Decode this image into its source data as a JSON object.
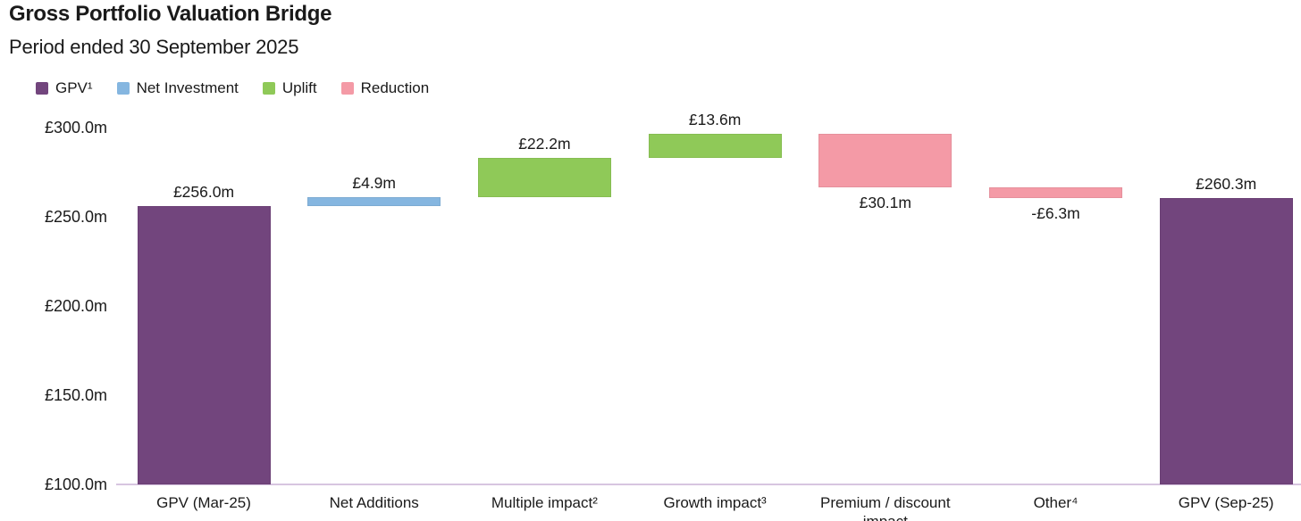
{
  "header": {
    "title": "Gross Portfolio Valuation Bridge",
    "subtitle": "Period ended 30 September 2025"
  },
  "chart_data": {
    "type": "waterfall",
    "title": "Gross Portfolio Valuation Bridge",
    "subtitle": "Period ended 30 September 2025",
    "currency_symbol": "£",
    "unit_suffix": "m",
    "ylim": [
      100,
      300
    ],
    "grid": false,
    "legend_position": "top-left",
    "legend": [
      {
        "label": "GPV¹",
        "color": "#72457d"
      },
      {
        "label": "Net Investment",
        "color": "#85b6e0"
      },
      {
        "label": "Uplift",
        "color": "#8fc958"
      },
      {
        "label": "Reduction",
        "color": "#f49aa6"
      }
    ],
    "yticks": [
      {
        "value": 300,
        "label": "£300.0m"
      },
      {
        "value": 250,
        "label": "£250.0m"
      },
      {
        "value": 200,
        "label": "£200.0m"
      },
      {
        "value": 150,
        "label": "£150.0m"
      },
      {
        "value": 100,
        "label": "£100.0m"
      }
    ],
    "bars": [
      {
        "category": "GPV (Mar-25)",
        "series": "GPV",
        "kind": "total",
        "value": 256.0,
        "base": 100,
        "top": 256.0,
        "label": "£256.0m",
        "label_position": "above",
        "color": "#72457d"
      },
      {
        "category": "Net Additions",
        "series": "Net Investment",
        "kind": "increase",
        "value": 4.9,
        "base": 256.0,
        "top": 260.9,
        "label": "£4.9m",
        "label_position": "above",
        "color": "#85b6e0"
      },
      {
        "category": "Multiple impact²",
        "series": "Uplift",
        "kind": "increase",
        "value": 22.2,
        "base": 260.9,
        "top": 283.1,
        "label": "£22.2m",
        "label_position": "above",
        "color": "#8fc958"
      },
      {
        "category": "Growth impact³",
        "series": "Uplift",
        "kind": "increase",
        "value": 13.6,
        "base": 283.1,
        "top": 296.7,
        "label": "£13.6m",
        "label_position": "above",
        "color": "#8fc958"
      },
      {
        "category": "Premium / discount impact",
        "series": "Reduction",
        "kind": "decrease",
        "value": -30.1,
        "base": 266.6,
        "top": 296.7,
        "label": "£30.1m",
        "label_position": "below",
        "color": "#f49aa6"
      },
      {
        "category": "Other⁴",
        "series": "Reduction",
        "kind": "decrease",
        "value": -6.3,
        "base": 260.3,
        "top": 266.6,
        "label": "-£6.3m",
        "label_position": "below",
        "color": "#f49aa6"
      },
      {
        "category": "GPV (Sep-25)",
        "series": "GPV",
        "kind": "total",
        "value": 260.3,
        "base": 100,
        "top": 260.3,
        "label": "£260.3m",
        "label_position": "above",
        "color": "#72457d"
      }
    ]
  }
}
